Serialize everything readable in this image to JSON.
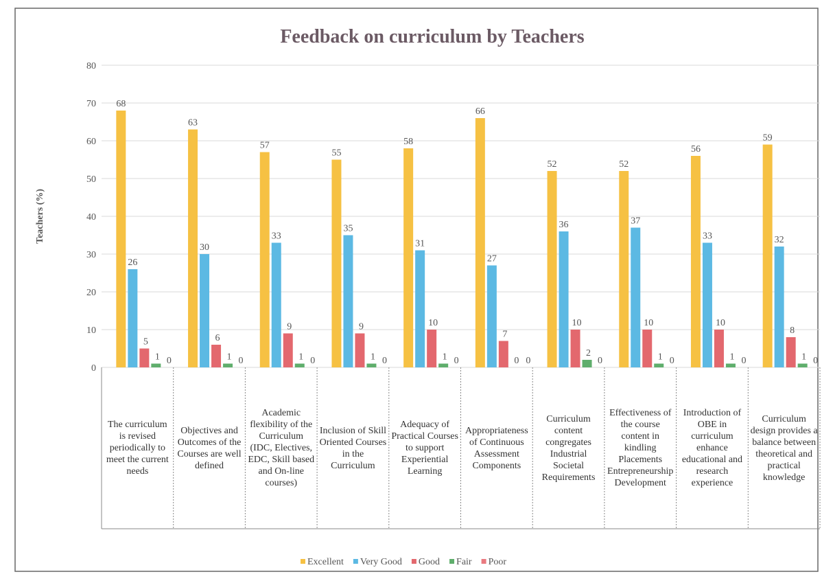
{
  "chart_data": {
    "type": "bar",
    "title": "Feedback on curriculum by Teachers",
    "ylabel": "Teachers (%)",
    "categories": [
      "The curriculum is revised periodically to meet the current needs",
      "Objectives and Outcomes of the Courses are well defined",
      "Academic flexibility of the Curriculum (IDC, Electives, EDC, Skill based and On-line courses)",
      "Inclusion of Skill Oriented Courses in the Curriculum",
      "Adequacy of Practical Courses to support Experiential Learning",
      "Appropriateness of Continuous Assessment Components",
      "Curriculum content congregates Industrial Societal Requirements",
      "Effectiveness of the course content in kindling Placements Entrepreneurship Development",
      "Introduction of OBE in curriculum enhance educational and research experience",
      "Curriculum design provides a balance between theoretical and practical knowledge"
    ],
    "series": [
      {
        "name": "Excellent",
        "color": "#f6c143",
        "values": [
          68,
          63,
          57,
          55,
          58,
          66,
          52,
          52,
          56,
          59
        ]
      },
      {
        "name": "Very Good",
        "color": "#5cb9e3",
        "values": [
          26,
          30,
          33,
          35,
          31,
          27,
          36,
          37,
          33,
          32
        ]
      },
      {
        "name": "Good",
        "color": "#e3686e",
        "values": [
          5,
          6,
          9,
          9,
          10,
          7,
          10,
          10,
          10,
          8
        ]
      },
      {
        "name": "Fair",
        "color": "#5fae6c",
        "values": [
          1,
          1,
          1,
          1,
          1,
          0,
          2,
          1,
          1,
          1
        ]
      },
      {
        "name": "Poor",
        "color": "#ea7a80",
        "values": [
          0,
          0,
          0,
          0,
          0,
          0,
          0,
          0,
          0,
          0
        ]
      }
    ],
    "ylim": [
      0,
      80
    ],
    "yticks": [
      0,
      10,
      20,
      30,
      40,
      50,
      60,
      70,
      80
    ],
    "grid": true,
    "legend": "bottom"
  }
}
